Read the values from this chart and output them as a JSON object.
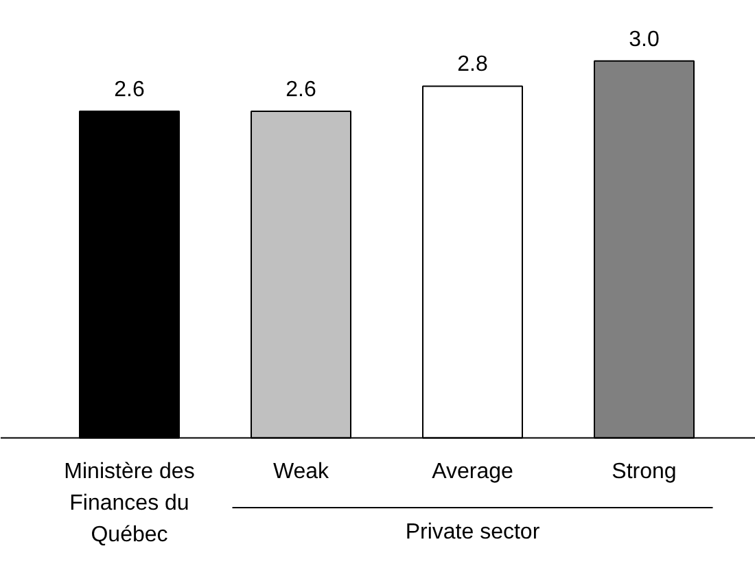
{
  "chart_data": {
    "type": "bar",
    "categories": [
      "Ministère des Finances du Québec",
      "Weak",
      "Average",
      "Strong"
    ],
    "values": [
      2.6,
      2.6,
      2.8,
      3.0
    ],
    "value_labels": [
      "2.6",
      "2.6",
      "2.8",
      "3.0"
    ],
    "colors": [
      "#000000",
      "#c0c0c0",
      "#ffffff",
      "#808080"
    ],
    "annotations": [
      "Private sector"
    ]
  }
}
